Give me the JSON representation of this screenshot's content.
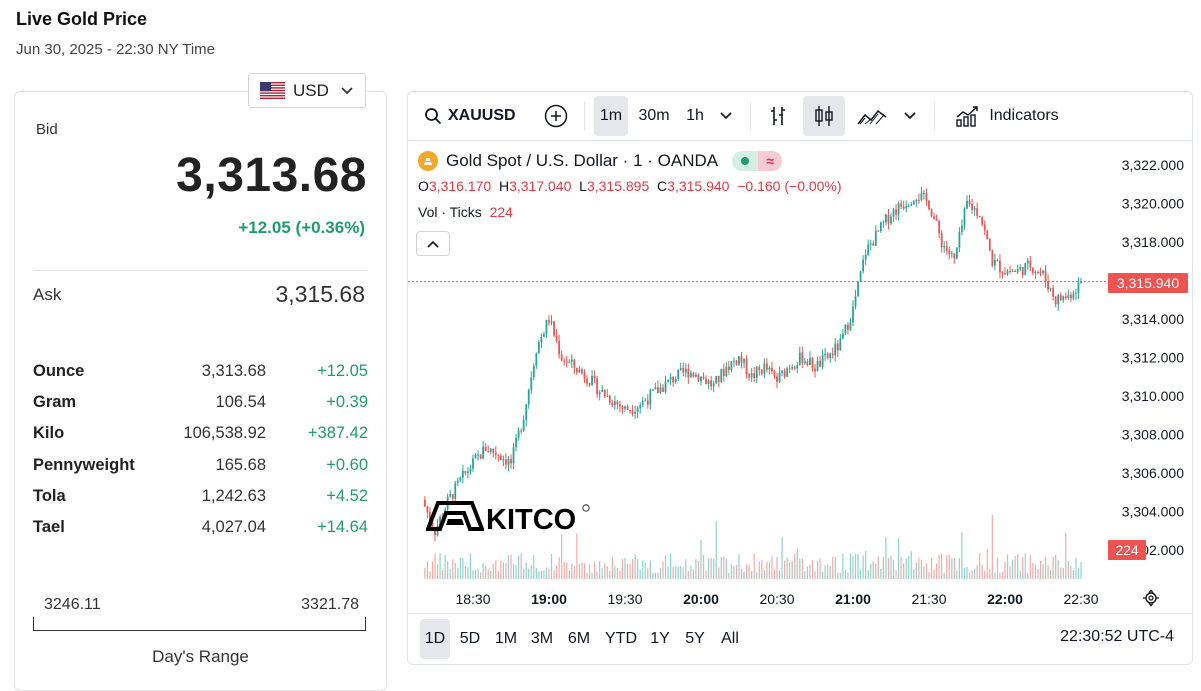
{
  "header": {
    "title": "Live Gold Price",
    "subtitle": "Jun 30, 2025 - 22:30 NY Time",
    "currency": "USD"
  },
  "quote": {
    "bid_label": "Bid",
    "bid": "3,313.68",
    "change": "+12.05 (+0.36%)",
    "ask_label": "Ask",
    "ask": "3,315.68"
  },
  "units": [
    {
      "name": "Ounce",
      "price": "3,313.68",
      "change": "+12.05"
    },
    {
      "name": "Gram",
      "price": "106.54",
      "change": "+0.39"
    },
    {
      "name": "Kilo",
      "price": "106,538.92",
      "change": "+387.42"
    },
    {
      "name": "Pennyweight",
      "price": "165.68",
      "change": "+0.60"
    },
    {
      "name": "Tola",
      "price": "1,242.63",
      "change": "+4.52"
    },
    {
      "name": "Tael",
      "price": "4,027.04",
      "change": "+14.64"
    }
  ],
  "day_range": {
    "low": "3246.11",
    "high": "3321.78",
    "label": "Day's Range"
  },
  "toolbar": {
    "symbol": "XAUUSD",
    "intervals": [
      "1m",
      "30m",
      "1h"
    ],
    "active_interval": "1m",
    "indicators_label": "Indicators"
  },
  "legend": {
    "name": "Gold Spot / U.S. Dollar · 1 · OANDA",
    "o_label": "O",
    "o": "3,316.170",
    "h_label": "H",
    "h": "3,317.040",
    "l_label": "L",
    "l": "3,315.895",
    "c_label": "C",
    "c": "3,315.940",
    "change": "−0.160 (−0.00%)",
    "vol_label": "Vol · Ticks",
    "vol_value": "224"
  },
  "watermark": "KITCO",
  "price_tag": "3,315.940",
  "volume_tag": "224",
  "ranges": [
    "1D",
    "5D",
    "1M",
    "3M",
    "6M",
    "YTD",
    "1Y",
    "5Y",
    "All"
  ],
  "active_range": "1D",
  "clock": "22:30:52 UTC-4",
  "colors": {
    "up": "#26a69a",
    "down": "#ef5350",
    "positive_text": "#1f9d6a"
  },
  "chart_data": {
    "type": "candlestick",
    "interval": "1m",
    "y_ticks": [
      "3,322.000",
      "3,320.000",
      "3,318.000",
      "3,316.000",
      "3,314.000",
      "3,312.000",
      "3,310.000",
      "3,308.000",
      "3,306.000",
      "3,304.000",
      "3,302.000"
    ],
    "x_ticks": [
      "18:30",
      "19:00",
      "19:30",
      "20:00",
      "20:30",
      "21:00",
      "21:30",
      "22:00",
      "22:30"
    ],
    "ylim": [
      3301,
      3323
    ],
    "current_price": 3315.94,
    "close_path": [
      {
        "t": "18:10",
        "close": 3304.6
      },
      {
        "t": "18:15",
        "close": 3303.0
      },
      {
        "t": "18:20",
        "close": 3304.5
      },
      {
        "t": "18:25",
        "close": 3305.6
      },
      {
        "t": "18:30",
        "close": 3306.5
      },
      {
        "t": "18:35",
        "close": 3307.3
      },
      {
        "t": "18:40",
        "close": 3307.0
      },
      {
        "t": "18:45",
        "close": 3306.5
      },
      {
        "t": "18:50",
        "close": 3309.0
      },
      {
        "t": "18:55",
        "close": 3312.5
      },
      {
        "t": "19:00",
        "close": 3314.0
      },
      {
        "t": "19:05",
        "close": 3312.0
      },
      {
        "t": "19:10",
        "close": 3311.5
      },
      {
        "t": "19:15",
        "close": 3311.0
      },
      {
        "t": "19:20",
        "close": 3310.3
      },
      {
        "t": "19:25",
        "close": 3309.8
      },
      {
        "t": "19:30",
        "close": 3309.3
      },
      {
        "t": "19:35",
        "close": 3309.5
      },
      {
        "t": "19:40",
        "close": 3310.0
      },
      {
        "t": "19:45",
        "close": 3310.5
      },
      {
        "t": "19:50",
        "close": 3311.0
      },
      {
        "t": "19:55",
        "close": 3311.3
      },
      {
        "t": "20:00",
        "close": 3311.0
      },
      {
        "t": "20:05",
        "close": 3310.5
      },
      {
        "t": "20:10",
        "close": 3311.5
      },
      {
        "t": "20:15",
        "close": 3312.0
      },
      {
        "t": "20:20",
        "close": 3311.0
      },
      {
        "t": "20:25",
        "close": 3311.5
      },
      {
        "t": "20:30",
        "close": 3310.8
      },
      {
        "t": "20:35",
        "close": 3311.6
      },
      {
        "t": "20:40",
        "close": 3312.0
      },
      {
        "t": "20:45",
        "close": 3311.5
      },
      {
        "t": "20:50",
        "close": 3312.0
      },
      {
        "t": "20:55",
        "close": 3312.7
      },
      {
        "t": "21:00",
        "close": 3314.5
      },
      {
        "t": "21:05",
        "close": 3317.5
      },
      {
        "t": "21:10",
        "close": 3318.5
      },
      {
        "t": "21:15",
        "close": 3319.5
      },
      {
        "t": "21:20",
        "close": 3320.0
      },
      {
        "t": "21:25",
        "close": 3320.5
      },
      {
        "t": "21:30",
        "close": 3320.0
      },
      {
        "t": "21:35",
        "close": 3318.0
      },
      {
        "t": "21:40",
        "close": 3317.0
      },
      {
        "t": "21:45",
        "close": 3320.0
      },
      {
        "t": "21:50",
        "close": 3319.5
      },
      {
        "t": "21:55",
        "close": 3317.0
      },
      {
        "t": "22:00",
        "close": 3316.5
      },
      {
        "t": "22:05",
        "close": 3316.5
      },
      {
        "t": "22:10",
        "close": 3316.8
      },
      {
        "t": "22:15",
        "close": 3316.3
      },
      {
        "t": "22:20",
        "close": 3315.0
      },
      {
        "t": "22:25",
        "close": 3315.2
      },
      {
        "t": "22:30",
        "close": 3315.9
      }
    ]
  }
}
